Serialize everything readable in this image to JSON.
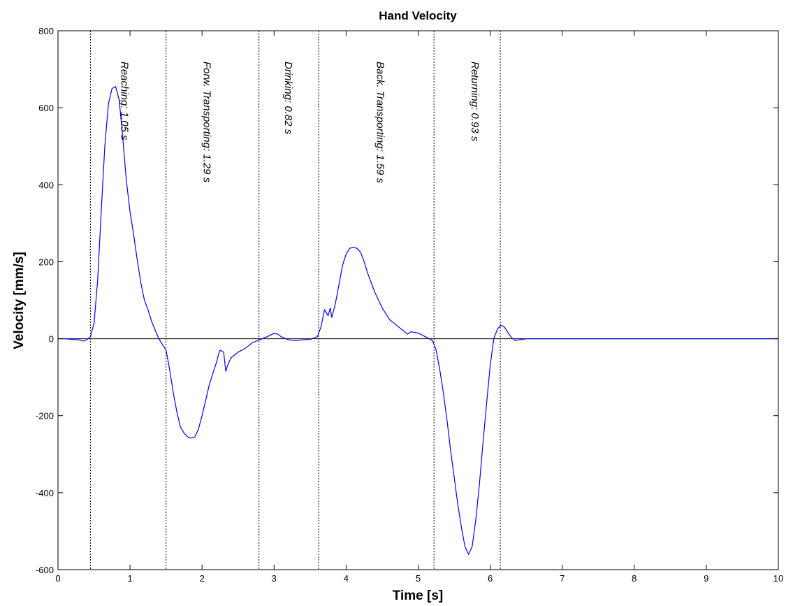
{
  "chart_data": {
    "type": "line",
    "title": "Hand Velocity",
    "xlabel": "Time [s]",
    "ylabel": "Velocity [mm/s]",
    "xlim": [
      0,
      10
    ],
    "ylim": [
      -600,
      800
    ],
    "xticks": [
      "0",
      "1",
      "2",
      "3",
      "4",
      "5",
      "6",
      "7",
      "8",
      "9",
      "10"
    ],
    "yticks": [
      "-600",
      "-400",
      "-200",
      "0",
      "200",
      "400",
      "600",
      "800"
    ],
    "grid": false,
    "colors": {
      "line": "#0000ff",
      "zero_line": "#000000",
      "phase_lines": "#000000"
    },
    "phase_boundaries": [
      0.45,
      1.5,
      2.79,
      3.62,
      5.22,
      6.14
    ],
    "phases": [
      {
        "label": "Reaching: 1.05 s",
        "x": 0.88
      },
      {
        "label": "Forw. Transporting: 1.29 s",
        "x": 2.02
      },
      {
        "label": "Drinking: 0.82 s",
        "x": 3.15
      },
      {
        "label": "Back. Transporting: 1.59 s",
        "x": 4.43
      },
      {
        "label": "Returning: 0.93 s",
        "x": 5.74
      }
    ],
    "series": [
      {
        "x": [
          0.0,
          0.1,
          0.2,
          0.3,
          0.35,
          0.4,
          0.45,
          0.5,
          0.55,
          0.6,
          0.65,
          0.7,
          0.75,
          0.8,
          0.85,
          0.9,
          0.95,
          1.0,
          1.05,
          1.1,
          1.15,
          1.2,
          1.25,
          1.3,
          1.35,
          1.4,
          1.45,
          1.5,
          1.55,
          1.6,
          1.65,
          1.7,
          1.75,
          1.8,
          1.85,
          1.9,
          1.95,
          2.0,
          2.05,
          2.1,
          2.15,
          2.2,
          2.23,
          2.25,
          2.3,
          2.33,
          2.35,
          2.4,
          2.5,
          2.6,
          2.7,
          2.8,
          2.9,
          3.0,
          3.05,
          3.1,
          3.2,
          3.3,
          3.4,
          3.5,
          3.6,
          3.65,
          3.7,
          3.75,
          3.78,
          3.8,
          3.85,
          3.9,
          3.95,
          4.0,
          4.05,
          4.1,
          4.15,
          4.2,
          4.25,
          4.3,
          4.4,
          4.5,
          4.6,
          4.7,
          4.8,
          4.85,
          4.9,
          5.0,
          5.1,
          5.2,
          5.25,
          5.3,
          5.35,
          5.4,
          5.45,
          5.5,
          5.55,
          5.6,
          5.65,
          5.7,
          5.75,
          5.8,
          5.85,
          5.9,
          5.95,
          6.0,
          6.05,
          6.1,
          6.15,
          6.2,
          6.25,
          6.3,
          6.35,
          6.4,
          6.45,
          6.5,
          6.6,
          7.0,
          8.0,
          9.0,
          10.0
        ],
        "y": [
          0,
          0,
          -2,
          -3,
          -6,
          -3,
          5,
          40,
          150,
          330,
          500,
          610,
          650,
          655,
          620,
          520,
          410,
          330,
          270,
          205,
          145,
          100,
          75,
          45,
          22,
          0,
          -15,
          -30,
          -80,
          -140,
          -190,
          -230,
          -245,
          -255,
          -258,
          -255,
          -235,
          -200,
          -160,
          -120,
          -90,
          -62,
          -40,
          -30,
          -35,
          -85,
          -72,
          -50,
          -35,
          -25,
          -10,
          -3,
          5,
          14,
          12,
          5,
          -3,
          -5,
          -3,
          -2,
          5,
          30,
          75,
          60,
          80,
          55,
          90,
          140,
          190,
          220,
          235,
          237,
          235,
          225,
          200,
          170,
          120,
          80,
          50,
          35,
          20,
          12,
          18,
          15,
          5,
          -5,
          -30,
          -80,
          -140,
          -210,
          -290,
          -360,
          -430,
          -490,
          -540,
          -560,
          -540,
          -470,
          -380,
          -270,
          -170,
          -70,
          0,
          25,
          35,
          30,
          15,
          2,
          -5,
          -3,
          -2,
          0,
          0,
          0,
          0,
          0,
          0
        ]
      }
    ]
  }
}
